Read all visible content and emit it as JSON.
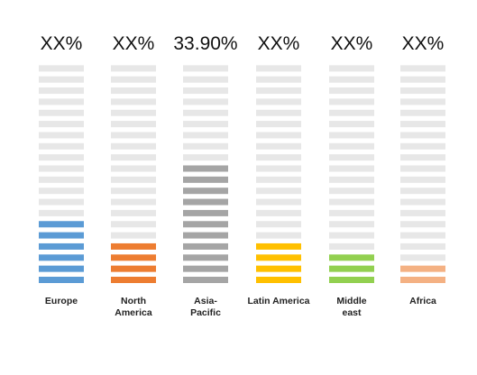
{
  "chart_data": {
    "type": "bar",
    "categories": [
      "Europe",
      "North America",
      "Asia-Pacific",
      "Latin America",
      "Middle east",
      "Africa"
    ],
    "category_label_lines": [
      [
        "Europe"
      ],
      [
        "North",
        "America"
      ],
      [
        "Asia-",
        "Pacific"
      ],
      [
        "Latin America"
      ],
      [
        "Middle",
        "east"
      ],
      [
        "Africa"
      ]
    ],
    "value_labels": [
      "XX%",
      "XX%",
      "33.90%",
      "XX%",
      "XX%",
      "XX%"
    ],
    "total_segments": 20,
    "filled_segments": [
      6,
      4,
      11,
      4,
      3,
      2
    ],
    "colors": [
      "#5b9bd5",
      "#ed7d31",
      "#a5a5a5",
      "#ffc000",
      "#92d050",
      "#f4b183"
    ],
    "empty_color": "#e7e7e7"
  }
}
